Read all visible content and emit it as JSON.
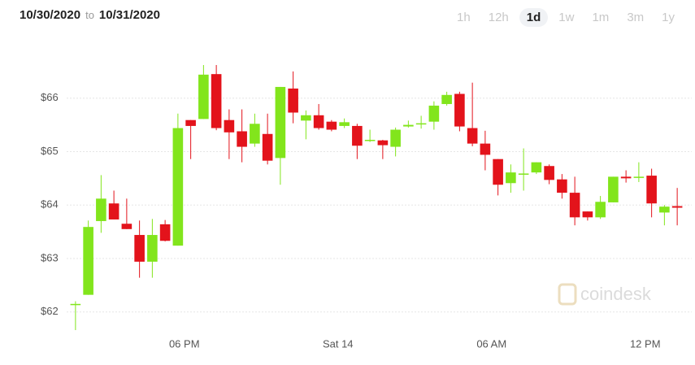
{
  "header": {
    "from": "10/30/2020",
    "to_word": "to",
    "to": "10/31/2020"
  },
  "ranges": {
    "options": [
      "1h",
      "12h",
      "1d",
      "1w",
      "1m",
      "3m",
      "1y"
    ],
    "selected": "1d"
  },
  "watermark": "coindesk",
  "chart_data": {
    "type": "candlestick",
    "categories": [
      null,
      null,
      null,
      null,
      null,
      null,
      null,
      null,
      null,
      "06 PM",
      null,
      null,
      null,
      null,
      null,
      null,
      null,
      null,
      null,
      null,
      null,
      "Sat 14",
      null,
      null,
      null,
      null,
      null,
      null,
      null,
      null,
      null,
      null,
      null,
      "06 AM",
      null,
      null,
      null,
      null,
      null,
      null,
      null,
      null,
      null,
      null,
      null,
      "12 PM",
      null,
      null
    ],
    "open": [
      62.13,
      62.32,
      63.7,
      64.03,
      63.65,
      63.44,
      62.94,
      63.64,
      63.24,
      65.59,
      65.61,
      66.45,
      65.59,
      65.38,
      65.15,
      65.33,
      64.88,
      66.18,
      65.58,
      65.68,
      65.56,
      65.48,
      65.48,
      65.2,
      65.21,
      65.09,
      65.47,
      65.52,
      65.56,
      65.89,
      66.08,
      65.44,
      65.15,
      64.86,
      64.41,
      64.58,
      64.61,
      64.73,
      64.48,
      64.23,
      63.88,
      63.77,
      64.05,
      64.53,
      64.52,
      64.55,
      63.86,
      63.98
    ],
    "high": [
      62.2,
      63.71,
      64.56,
      64.27,
      64.12,
      63.71,
      63.74,
      63.72,
      65.71,
      65.59,
      66.62,
      66.62,
      65.79,
      65.79,
      65.71,
      65.71,
      66.21,
      66.5,
      65.77,
      65.89,
      65.59,
      65.62,
      65.52,
      65.41,
      65.22,
      65.45,
      65.58,
      65.67,
      65.94,
      66.12,
      66.12,
      66.29,
      65.39,
      64.86,
      64.76,
      65.06,
      64.8,
      64.76,
      64.58,
      64.53,
      63.88,
      64.17,
      64.53,
      64.65,
      64.8,
      64.68,
      64.0,
      64.32
    ],
    "low": [
      61.66,
      62.32,
      63.48,
      63.73,
      63.55,
      62.64,
      62.64,
      63.32,
      63.24,
      64.86,
      65.61,
      65.4,
      64.86,
      64.8,
      65.09,
      64.76,
      64.38,
      65.53,
      65.23,
      65.41,
      65.38,
      65.44,
      64.86,
      65.18,
      64.86,
      64.91,
      65.45,
      65.43,
      65.41,
      65.86,
      65.38,
      65.1,
      64.65,
      64.18,
      64.23,
      64.27,
      64.58,
      64.39,
      64.12,
      63.62,
      63.71,
      63.74,
      64.05,
      64.42,
      64.43,
      63.77,
      63.62,
      63.62
    ],
    "close": [
      62.15,
      63.59,
      64.12,
      63.73,
      63.55,
      62.94,
      63.44,
      63.33,
      65.44,
      65.48,
      66.44,
      65.44,
      65.36,
      65.09,
      65.52,
      64.83,
      66.21,
      65.73,
      65.68,
      65.44,
      65.41,
      65.55,
      65.11,
      65.22,
      65.12,
      65.41,
      65.5,
      65.53,
      65.86,
      66.06,
      65.47,
      65.15,
      64.94,
      64.38,
      64.61,
      64.59,
      64.8,
      64.47,
      64.23,
      63.77,
      63.77,
      64.06,
      64.53,
      64.5,
      64.53,
      64.03,
      63.97,
      63.95
    ],
    "up_color": "#82e51c",
    "down_color": "#e3131b",
    "ylim": [
      61.6,
      67.0
    ],
    "yticks": [
      {
        "value": 62,
        "label": "$62"
      },
      {
        "value": 63,
        "label": "$63"
      },
      {
        "value": 64,
        "label": "$64"
      },
      {
        "value": 65,
        "label": "$65"
      },
      {
        "value": 66,
        "label": "$66"
      }
    ],
    "grid": true
  }
}
